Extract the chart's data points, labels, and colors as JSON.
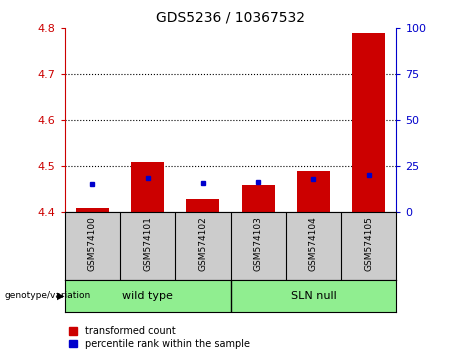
{
  "title": "GDS5236 / 10367532",
  "samples": [
    "GSM574100",
    "GSM574101",
    "GSM574102",
    "GSM574103",
    "GSM574104",
    "GSM574105"
  ],
  "red_values": [
    4.41,
    4.51,
    4.43,
    4.46,
    4.49,
    4.79
  ],
  "blue_values": [
    4.462,
    4.474,
    4.464,
    4.466,
    4.472,
    4.481
  ],
  "ylim_left": [
    4.4,
    4.8
  ],
  "ylim_right": [
    0,
    100
  ],
  "yticks_left": [
    4.4,
    4.5,
    4.6,
    4.7,
    4.8
  ],
  "yticks_right": [
    0,
    25,
    50,
    75,
    100
  ],
  "bar_bottom": 4.4,
  "legend_red": "transformed count",
  "legend_blue": "percentile rank within the sample",
  "red_color": "#cc0000",
  "blue_color": "#0000cc",
  "left_tick_color": "#cc0000",
  "right_tick_color": "#0000cc",
  "background_xlabels": "#cccccc",
  "background_groups": "#90EE90",
  "bar_width": 0.6,
  "grid_yticks": [
    4.5,
    4.6,
    4.7
  ],
  "group_label": "genotype/variation",
  "wild_type_label": "wild type",
  "sln_null_label": "SLN null"
}
